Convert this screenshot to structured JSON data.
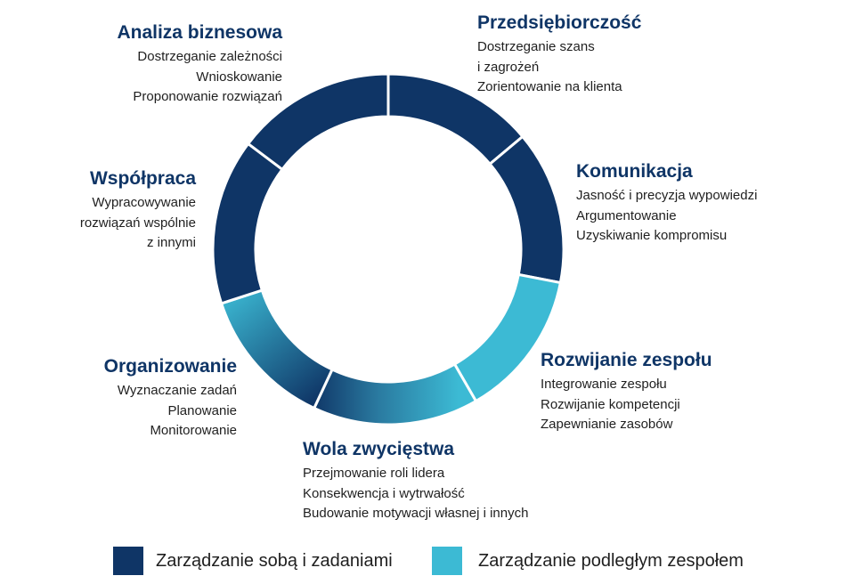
{
  "colors": {
    "dark": "#0f3566",
    "light": "#3cbad4",
    "title": "#0f3566",
    "text": "#1f1f1f"
  },
  "competencies": [
    {
      "title": "Przedsiębiorczość",
      "items": [
        "Dostrzeganie szans",
        "i zagrożeń",
        "Zorientowanie na klienta"
      ],
      "group": "self"
    },
    {
      "title": "Komunikacja",
      "items": [
        "Jasność i precyzja wypowiedzi",
        "Argumentowanie",
        "Uzyskiwanie kompromisu"
      ],
      "group": "self"
    },
    {
      "title": "Rozwijanie zespołu",
      "items": [
        "Integrowanie zespołu",
        "Rozwijanie kompetencji",
        "Zapewnianie zasobów"
      ],
      "group": "team"
    },
    {
      "title": "Wola zwycięstwa",
      "items": [
        "Przejmowanie roli lidera",
        "Konsekwencja i wytrwałość",
        "Budowanie motywacji własnej i innych"
      ],
      "group": "transition"
    },
    {
      "title": "Organizowanie",
      "items": [
        "Wyznaczanie zadań",
        "Planowanie",
        "Monitorowanie"
      ],
      "group": "team"
    },
    {
      "title": "Współpraca",
      "items": [
        "Wypracowywanie",
        "rozwiązań wspólnie",
        "z innymi"
      ],
      "group": "self"
    },
    {
      "title": "Analiza biznesowa",
      "items": [
        "Dostrzeganie zależności",
        "Wnioskowanie",
        "Proponowanie rozwiązań"
      ],
      "group": "self"
    }
  ],
  "legend": [
    {
      "label": "Zarządzanie sobą i zadaniami",
      "color": "#0f3566"
    },
    {
      "label": "Zarządzanie podległym zespołem",
      "color": "#3cbad4"
    }
  ]
}
